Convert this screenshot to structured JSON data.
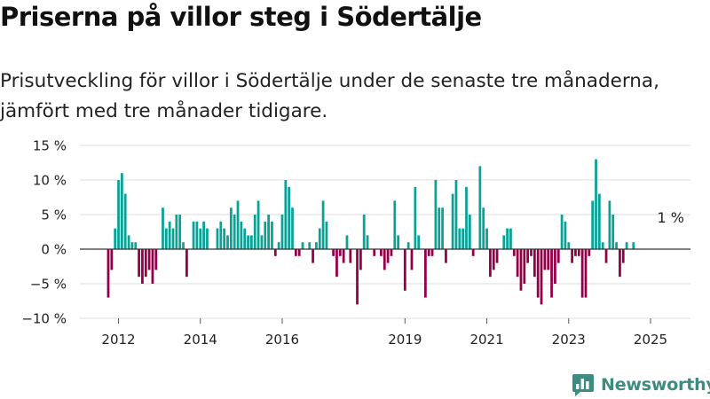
{
  "title": "Priserna på villor steg i Södertälje",
  "subtitle": "Prisutveckling för villor i Södertälje under de senaste tre månaderna, jämfört med tre månader tidigare.",
  "brand": {
    "name": "Newsworthy",
    "logo_icon": "bar-chart-logo-icon",
    "color": "#3e8b80"
  },
  "colors": {
    "positive": "#0aa295",
    "negative": "#930048",
    "zero_line": "#333333",
    "grid": "#dddddd",
    "text": "#222222"
  },
  "chart_data": {
    "type": "bar",
    "title": "",
    "xlabel": "",
    "ylabel": "",
    "ylim": [
      -10,
      15
    ],
    "y_ticks": [
      -10,
      -5,
      0,
      5,
      10,
      15
    ],
    "y_tick_labels": [
      "−10 %",
      "−5 %",
      "0 %",
      "5 %",
      "10 %",
      "15 %"
    ],
    "x_ticks": [
      2012,
      2014,
      2016,
      2019,
      2021,
      2023,
      2025
    ],
    "x_tick_labels": [
      "2012",
      "2014",
      "2016",
      "2019",
      "2021",
      "2023",
      "2025"
    ],
    "x_start": "2011-10",
    "frequency": "monthly",
    "grid": true,
    "legend": "none",
    "annotation": {
      "text": "1 %",
      "month": "2025-04"
    },
    "values": [
      -7,
      -3,
      3,
      10,
      11,
      8,
      2,
      1,
      1,
      -4,
      -5,
      -4,
      -3,
      -5,
      -3,
      0,
      6,
      3,
      4,
      3,
      5,
      5,
      1,
      -4,
      0,
      4,
      4,
      3,
      4,
      3,
      0,
      0,
      3,
      4,
      3,
      2,
      6,
      5,
      7,
      4,
      3,
      2,
      2,
      5,
      7,
      2,
      4,
      5,
      4,
      -1,
      1,
      5,
      10,
      9,
      6,
      -1,
      -1,
      1,
      0,
      1,
      -2,
      1,
      3,
      7,
      4,
      0,
      -1,
      -4,
      -1,
      -2,
      2,
      -2,
      0,
      -8,
      -3,
      5,
      2,
      0,
      -1,
      0,
      -1,
      -3,
      -2,
      -1,
      7,
      2,
      0,
      -6,
      1,
      -3,
      9,
      2,
      0,
      -7,
      -1,
      -1,
      10,
      6,
      6,
      -2,
      0,
      8,
      10,
      3,
      3,
      9,
      5,
      -1,
      0,
      12,
      6,
      3,
      -4,
      -3,
      -2,
      0,
      2,
      3,
      3,
      -1,
      -4,
      -6,
      -5,
      -2,
      -1,
      -4,
      -7,
      -8,
      -3,
      -3,
      -7,
      -5,
      -2,
      5,
      4,
      1,
      -2,
      -1,
      -1,
      -7,
      -7,
      -1,
      7,
      13,
      8,
      1,
      -2,
      7,
      5,
      1,
      -4,
      -2,
      1,
      0,
      1
    ]
  }
}
